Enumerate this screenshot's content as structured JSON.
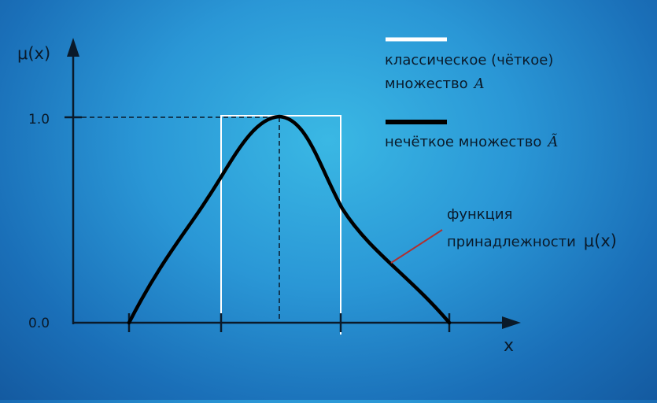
{
  "diagram": {
    "y_axis_label": "μ(x)",
    "x_axis_label": "x",
    "tick_top": "1.0",
    "tick_bottom": "0.0",
    "legend": {
      "crisp_line1": "классическое (чёткое)",
      "crisp_line2": "множество",
      "crisp_symbol": "A",
      "fuzzy_text": "нечёткое множество",
      "fuzzy_symbol": "Ã"
    },
    "annotation": {
      "line1": "функция",
      "line2": "принадлежности",
      "symbol": "μ(x)"
    },
    "colors": {
      "axis": "#0a1a2a",
      "crisp_set": "#ffffff",
      "fuzzy_set": "#000000",
      "pointer": "#b03030",
      "text": "#0a1a2a"
    }
  }
}
